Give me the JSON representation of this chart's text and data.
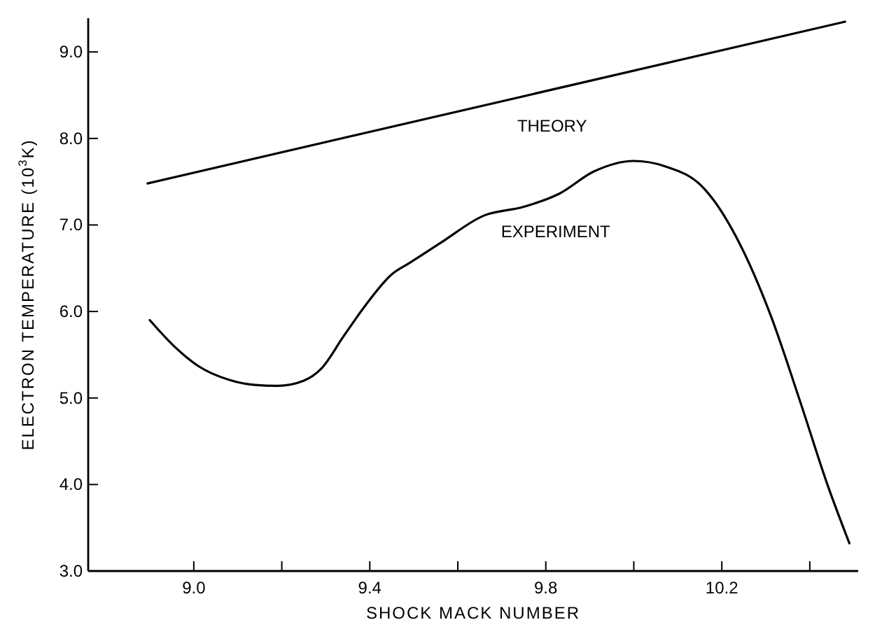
{
  "chart_data": {
    "type": "line",
    "xlabel": "SHOCK MACK NUMBER",
    "ylabel": "ELECTRON TEMPERATURE (10$^{3}$K)",
    "xlim": [
      8.76,
      10.51
    ],
    "ylim": [
      3.0,
      9.39
    ],
    "xticks": [
      {
        "value": 9.0,
        "label": "9.0"
      },
      {
        "value": 9.2,
        "label": null
      },
      {
        "value": 9.4,
        "label": "9.4"
      },
      {
        "value": 9.6,
        "label": null
      },
      {
        "value": 9.8,
        "label": "9.8"
      },
      {
        "value": 10.0,
        "label": null
      },
      {
        "value": 10.2,
        "label": "10.2"
      },
      {
        "value": 10.4,
        "label": null
      }
    ],
    "yticks": [
      {
        "value": 3,
        "label": "3.0"
      },
      {
        "value": 4,
        "label": "4.0"
      },
      {
        "value": 5,
        "label": "5.0"
      },
      {
        "value": 6,
        "label": "6.0"
      },
      {
        "value": 7,
        "label": "7.0"
      },
      {
        "value": 8,
        "label": "8.0"
      },
      {
        "value": 9,
        "label": "9.0"
      }
    ],
    "grid": false,
    "marker": "none",
    "line_style": "solid",
    "series": [
      {
        "name": "THEORY",
        "color": "#000000",
        "x": [
          8.895,
          10.48
        ],
        "values": [
          7.48,
          9.35
        ]
      },
      {
        "name": "EXPERIMENT",
        "color": "#000000",
        "x": [
          8.9,
          8.955,
          9.01,
          9.08,
          9.14,
          9.19,
          9.25,
          9.29,
          9.34,
          9.39,
          9.45,
          9.49,
          9.56,
          9.66,
          9.75,
          9.83,
          9.91,
          10.0,
          10.07,
          10.16,
          10.24,
          10.31,
          10.38,
          10.44,
          10.49
        ],
        "values": [
          5.9,
          5.6,
          5.37,
          5.21,
          5.15,
          5.14,
          5.2,
          5.34,
          5.71,
          6.07,
          6.43,
          6.56,
          6.79,
          7.11,
          7.21,
          7.36,
          7.62,
          7.74,
          7.68,
          7.42,
          6.79,
          5.97,
          4.93,
          4.0,
          3.32
        ]
      }
    ]
  }
}
